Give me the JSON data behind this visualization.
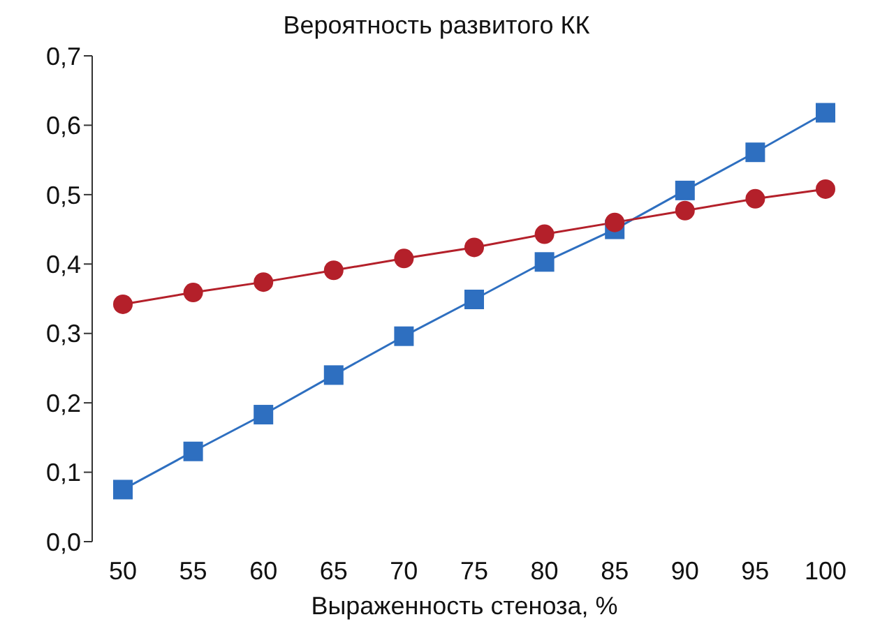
{
  "chart_data": {
    "type": "line",
    "title": "Вероятность развитого КК",
    "xlabel": "Выраженность стеноза, %",
    "categories": [
      "50",
      "55",
      "60",
      "65",
      "70",
      "75",
      "80",
      "85",
      "90",
      "95",
      "100"
    ],
    "series": [
      {
        "color": "#2e6fc0",
        "marker": "square",
        "values": [
          0.075,
          0.13,
          0.183,
          0.24,
          0.296,
          0.349,
          0.403,
          0.45,
          0.506,
          0.561,
          0.618
        ]
      },
      {
        "color": "#b4202a",
        "marker": "circle",
        "values": [
          0.342,
          0.359,
          0.374,
          0.391,
          0.408,
          0.424,
          0.443,
          0.46,
          0.477,
          0.494,
          0.508
        ]
      }
    ],
    "ylim": [
      0,
      0.7
    ],
    "yticks": [
      {
        "value": 0,
        "label": "0,0"
      },
      {
        "value": 0.1,
        "label": "0,1"
      },
      {
        "value": 0.2,
        "label": "0,2"
      },
      {
        "value": 0.3,
        "label": "0,3"
      },
      {
        "value": 0.4,
        "label": "0,4"
      },
      {
        "value": 0.5,
        "label": "0,5"
      },
      {
        "value": 0.6,
        "label": "0,6"
      },
      {
        "value": 0.7,
        "label": "0,7"
      }
    ],
    "grid": false,
    "legend": false
  }
}
